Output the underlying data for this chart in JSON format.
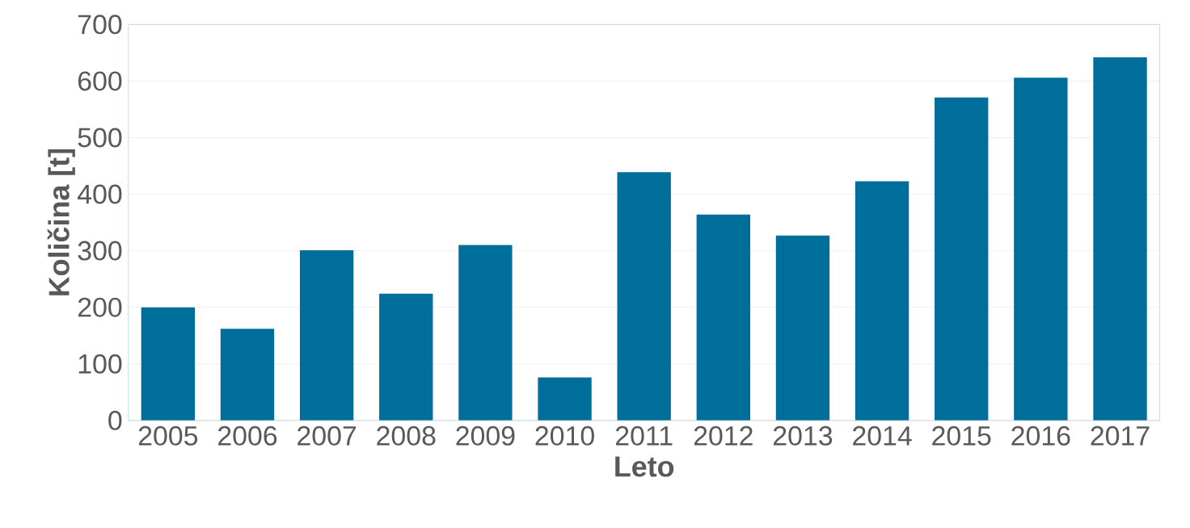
{
  "chart_data": {
    "type": "bar",
    "xlabel": "Leto",
    "ylabel": "Količina [t]",
    "categories": [
      "2005",
      "2006",
      "2007",
      "2008",
      "2009",
      "2010",
      "2011",
      "2012",
      "2013",
      "2014",
      "2015",
      "2016",
      "2017"
    ],
    "values": [
      200,
      162,
      301,
      224,
      310,
      76,
      439,
      364,
      327,
      423,
      571,
      606,
      642
    ],
    "color": "#006e9a",
    "ylim": [
      0,
      700
    ],
    "yticks": [
      0,
      100,
      200,
      300,
      400,
      500,
      600,
      700
    ],
    "grid": "y"
  }
}
